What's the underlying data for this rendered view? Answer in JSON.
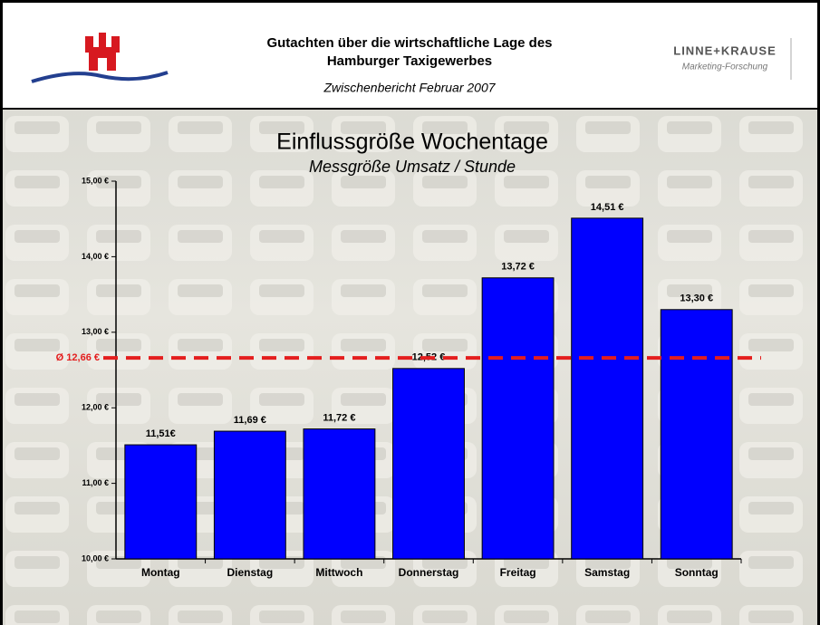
{
  "header": {
    "title_lines": [
      "Gutachten über die wirtschaftliche Lage des",
      "Hamburger Taxigewerbes"
    ],
    "subtitle": "Zwischenbericht Februar 2007",
    "logo_name": "LINNE+KRAUSE",
    "logo_tagline": "Marketing-Forschung"
  },
  "chart_data": {
    "type": "bar",
    "title": "Einflussgröße Wochentage",
    "subtitle": "Messgröße Umsatz / Stunde",
    "categories": [
      "Montag",
      "Dienstag",
      "Mittwoch",
      "Donnerstag",
      "Freitag",
      "Samstag",
      "Sonntag"
    ],
    "values": [
      11.51,
      11.69,
      11.72,
      12.52,
      13.72,
      14.51,
      13.3
    ],
    "value_labels": [
      "11,51€",
      "11,69 €",
      "11,72 €",
      "12,52 €",
      "13,72 €",
      "14,51 €",
      "13,30 €"
    ],
    "color": "#0000ff",
    "ylim": [
      10,
      15
    ],
    "yticks": [
      {
        "value": 10,
        "label": "10,00 €"
      },
      {
        "value": 11,
        "label": "11,00 €"
      },
      {
        "value": 12,
        "label": "12,00 €"
      },
      {
        "value": 13,
        "label": "13,00 €"
      },
      {
        "value": 14,
        "label": "14,00 €"
      },
      {
        "value": 15,
        "label": "15,00 €"
      }
    ],
    "average": {
      "value": 12.66,
      "label": "Ø 12,66 €",
      "color": "#e41e1e"
    }
  }
}
